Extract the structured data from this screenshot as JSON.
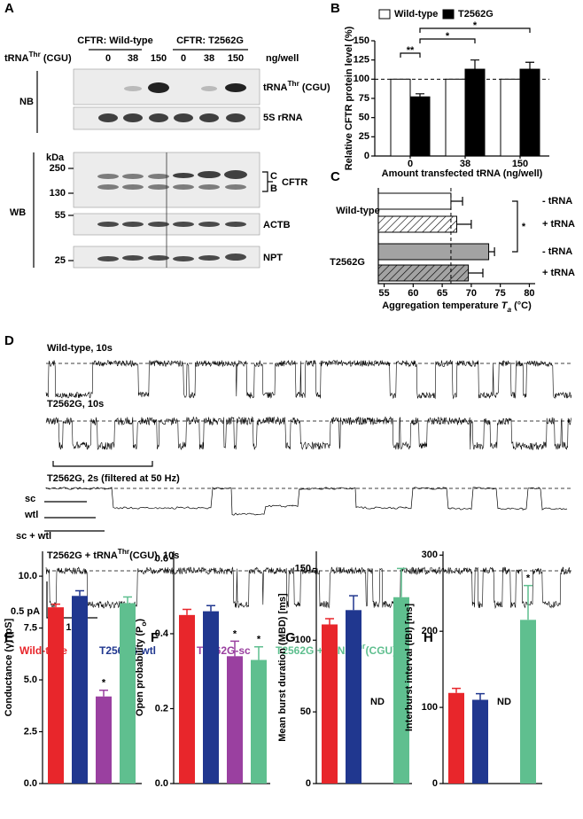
{
  "panel_labels": [
    "A",
    "B",
    "C",
    "D",
    "E",
    "F",
    "G",
    "H"
  ],
  "panel_a": {
    "header_trna": [
      "tRNA",
      "Thr",
      " (CGU)"
    ],
    "groups": [
      "CFTR: Wild-type",
      "CFTR: T2562G"
    ],
    "lanes": [
      0,
      38,
      150
    ],
    "unit": "ng/well",
    "nb": "NB",
    "wb": "WB",
    "nb_trna": [
      "tRNA",
      "Thr",
      " (CGU)"
    ],
    "nb_rrna": "5S rRNA",
    "kda": "kDa",
    "markers": [
      250,
      130,
      55,
      25
    ],
    "cftr_bands": [
      "C",
      "B"
    ],
    "cftr": "CFTR",
    "wb_bands": [
      "ACTB",
      "NPT"
    ]
  },
  "panel_d": {
    "traces": [
      "Wild-type, 10s",
      "T2562G, 10s",
      "T2562G, 2s (filtered at 50 Hz)"
    ],
    "levels": [
      "sc",
      "wtl",
      "sc + wtl"
    ],
    "rescue_trace": [
      "T2562G + tRNA",
      "Thr",
      "(CGU), 10s"
    ],
    "scale_y": "0.5 pA",
    "scale_x": "1 s"
  },
  "legend": [
    {
      "name": "Wild-type",
      "color": "#e8262b"
    },
    {
      "name": "T2562G-wtl",
      "color": "#20378f"
    },
    {
      "name": "T2562G-sc",
      "color": "#9a40a0"
    },
    {
      "name": "T2562G + tRNA",
      "name_sup": "Thr",
      "name_rest": "(CGU)",
      "color": "#5fbf8f"
    }
  ],
  "chart_data": [
    {
      "type": "bar",
      "ylabel": "Relative CFTR protein level (%)",
      "xlabel": "Amount transfected tRNA (ng/well)",
      "categories": [
        "0",
        "38",
        "150"
      ],
      "series": [
        {
          "name": "Wild-type",
          "color": "#ffffff",
          "values": [
            100,
            100,
            100
          ]
        },
        {
          "name": "T2562G",
          "color": "#000000",
          "values": [
            77,
            113,
            113
          ],
          "errors": [
            4,
            12,
            9
          ]
        }
      ],
      "ylim": [
        0,
        150
      ],
      "yticks": [
        0,
        25,
        50,
        75,
        100,
        125,
        150
      ],
      "reference_line": 100,
      "annotations": [
        "**",
        "*",
        "*"
      ]
    },
    {
      "type": "hbar",
      "xlabel": [
        "Aggregation temperature ",
        "T",
        "a",
        " (°C)"
      ],
      "groups": [
        "Wild-type",
        "T2562G"
      ],
      "categories": [
        "- tRNA",
        "+ tRNA",
        "- tRNA",
        "+ tRNA"
      ],
      "values": [
        66.5,
        67.5,
        73,
        69.5
      ],
      "errors": [
        2,
        2.5,
        1,
        2.5
      ],
      "colors": [
        "#ffffff",
        "#ffffff",
        "#a3a3a3",
        "#a3a3a3"
      ],
      "hatched": [
        false,
        true,
        false,
        true
      ],
      "xlim": [
        54,
        81
      ],
      "xticks": [
        55,
        60,
        65,
        70,
        75,
        80
      ],
      "reference_line": 66.5,
      "annotations": [
        "*"
      ]
    },
    {
      "type": "bar",
      "ylabel": "Conductance (γ) [pS]",
      "categories": [
        null,
        null,
        null,
        null
      ],
      "values": [
        8.5,
        9.05,
        4.2,
        8.7
      ],
      "errors": [
        0.15,
        0.25,
        0.3,
        0.3
      ],
      "ylim": [
        0,
        11.2
      ],
      "yticks": [
        {
          "value": 0,
          "label": "0.0"
        },
        2.5,
        {
          "value": 5,
          "label": "5.0"
        },
        7.5,
        {
          "value": 10,
          "label": "10.0"
        }
      ],
      "annotations": [
        "*"
      ]
    },
    {
      "type": "bar",
      "ylabel": [
        "Open probability (P",
        "o",
        ")"
      ],
      "categories": [
        null,
        null,
        null,
        null
      ],
      "values": [
        0.45,
        0.46,
        0.34,
        0.33
      ],
      "errors": [
        0.015,
        0.015,
        0.04,
        0.035
      ],
      "ylim": [
        0,
        0.62
      ],
      "yticks": [
        {
          "value": 0,
          "label": "0.0"
        },
        0.2,
        0.4,
        0.6
      ],
      "annotations": [
        "*",
        "*"
      ]
    },
    {
      "type": "bar",
      "ylabel": "Mean burst duration (MBD) [ms]",
      "categories": [
        null,
        null,
        null,
        null
      ],
      "values": [
        111,
        121,
        null,
        130
      ],
      "errors": [
        4,
        10,
        null,
        20
      ],
      "ylim": [
        0,
        162
      ],
      "yticks": [
        0,
        50,
        100,
        150
      ],
      "annotations": [
        "ND"
      ]
    },
    {
      "type": "bar",
      "ylabel": "Interburst interval (IBI) [ms]",
      "categories": [
        null,
        null,
        null,
        null
      ],
      "values": [
        119,
        110,
        null,
        215
      ],
      "errors": [
        6,
        8,
        null,
        45
      ],
      "ylim": [
        0,
        305
      ],
      "yticks": [
        0,
        100,
        200,
        300
      ],
      "annotations": [
        "ND",
        "*"
      ]
    }
  ]
}
